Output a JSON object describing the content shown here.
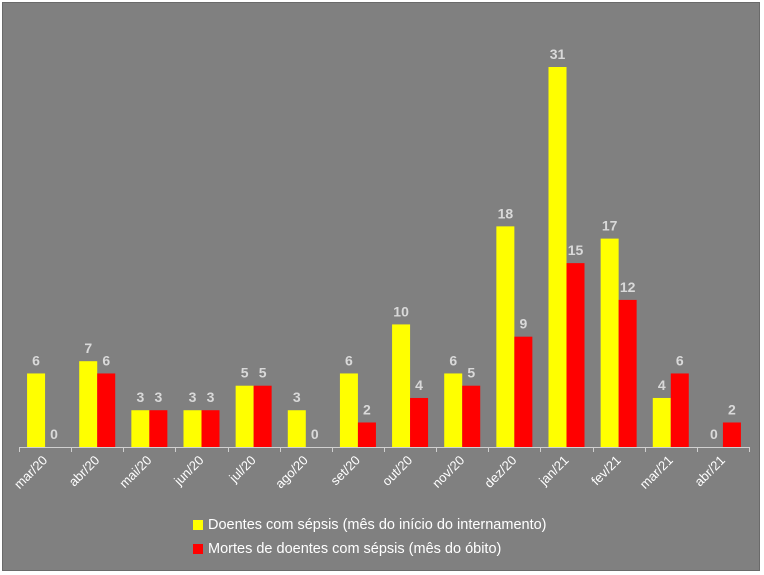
{
  "chart_data": {
    "type": "bar",
    "categories": [
      "mar/20",
      "abr/20",
      "mai/20",
      "jun/20",
      "jul/20",
      "ago/20",
      "set/20",
      "out/20",
      "nov/20",
      "dez/20",
      "jan/21",
      "fev/21",
      "mar/21",
      "abr/21"
    ],
    "series": [
      {
        "name": "Doentes com sépsis (mês do início do internamento)",
        "color": "#ffff00",
        "values": [
          6,
          7,
          3,
          3,
          5,
          3,
          6,
          10,
          6,
          18,
          31,
          17,
          4,
          0
        ]
      },
      {
        "name": "Mortes de doentes com sépsis (mês do óbito)",
        "color": "#ff0000",
        "values": [
          0,
          6,
          3,
          3,
          5,
          0,
          2,
          4,
          5,
          9,
          15,
          12,
          6,
          2
        ]
      }
    ],
    "ylim": [
      0,
      31
    ],
    "grid": false,
    "legend_position": "bottom",
    "data_labels": true,
    "background_color": "#808080",
    "label_color": "#d9d9d9"
  }
}
